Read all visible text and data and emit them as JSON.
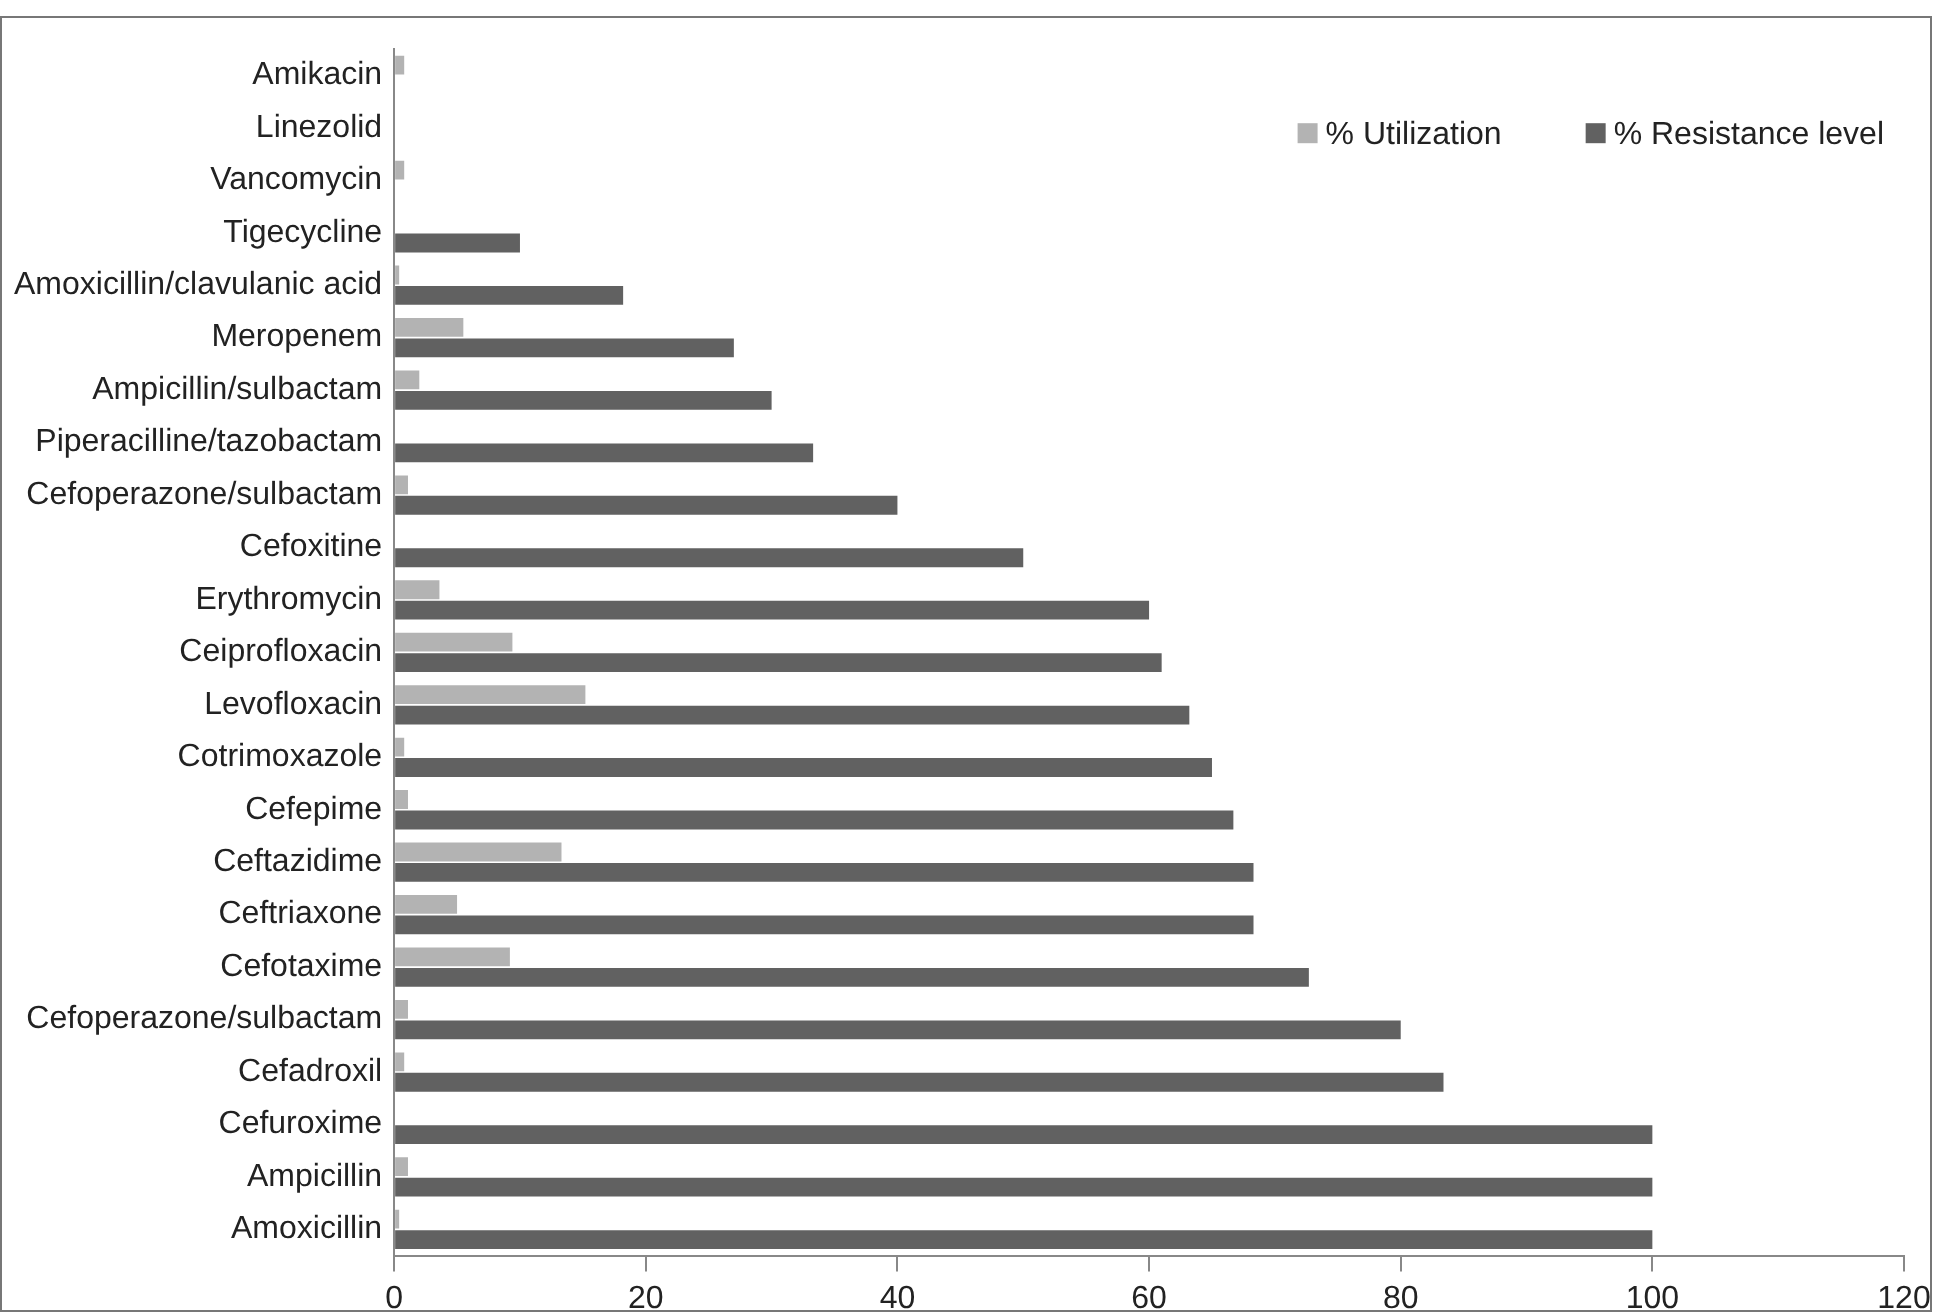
{
  "chart_data": {
    "type": "bar",
    "orientation": "horizontal",
    "categories": [
      "Amikacin",
      "Linezolid",
      "Vancomycin",
      "Tigecycline",
      "Amoxicillin/clavulanic acid",
      "Meropenem",
      "Ampicillin/sulbactam",
      "Piperacilline/tazobactam",
      "Cefoperazone/sulbactam",
      "Cefoxitine",
      "Erythromycin",
      "Ceiprofloxacin",
      "Levofloxacin",
      "Cotrimoxazole",
      "Cefepime",
      "Ceftazidime",
      "Ceftriaxone",
      "Cefotaxime",
      "Cefoperazone/sulbactam",
      "Cefadroxil",
      "Cefuroxime",
      "Ampicillin",
      "Amoxicillin"
    ],
    "series": [
      {
        "name": "% Utilization",
        "color": "#b3b3b3",
        "values": [
          0.8,
          0,
          0.8,
          0,
          0.4,
          5.5,
          2,
          0,
          1.1,
          0,
          3.6,
          9.4,
          15.2,
          0.8,
          1.1,
          13.3,
          5,
          9.2,
          1.1,
          0.8,
          0,
          1.1,
          0.4
        ]
      },
      {
        "name": "% Resistance level",
        "color": "#616161",
        "values": [
          0,
          0,
          0,
          10,
          18.2,
          27,
          30,
          33.3,
          40,
          50,
          60,
          61,
          63.2,
          65,
          66.7,
          68.3,
          68.3,
          72.7,
          80,
          83.4,
          100,
          100,
          100
        ]
      }
    ],
    "xlim": [
      0,
      120
    ],
    "xticks": [
      0,
      20,
      40,
      60,
      80,
      100,
      120
    ],
    "grid": false,
    "legend": "top right"
  }
}
